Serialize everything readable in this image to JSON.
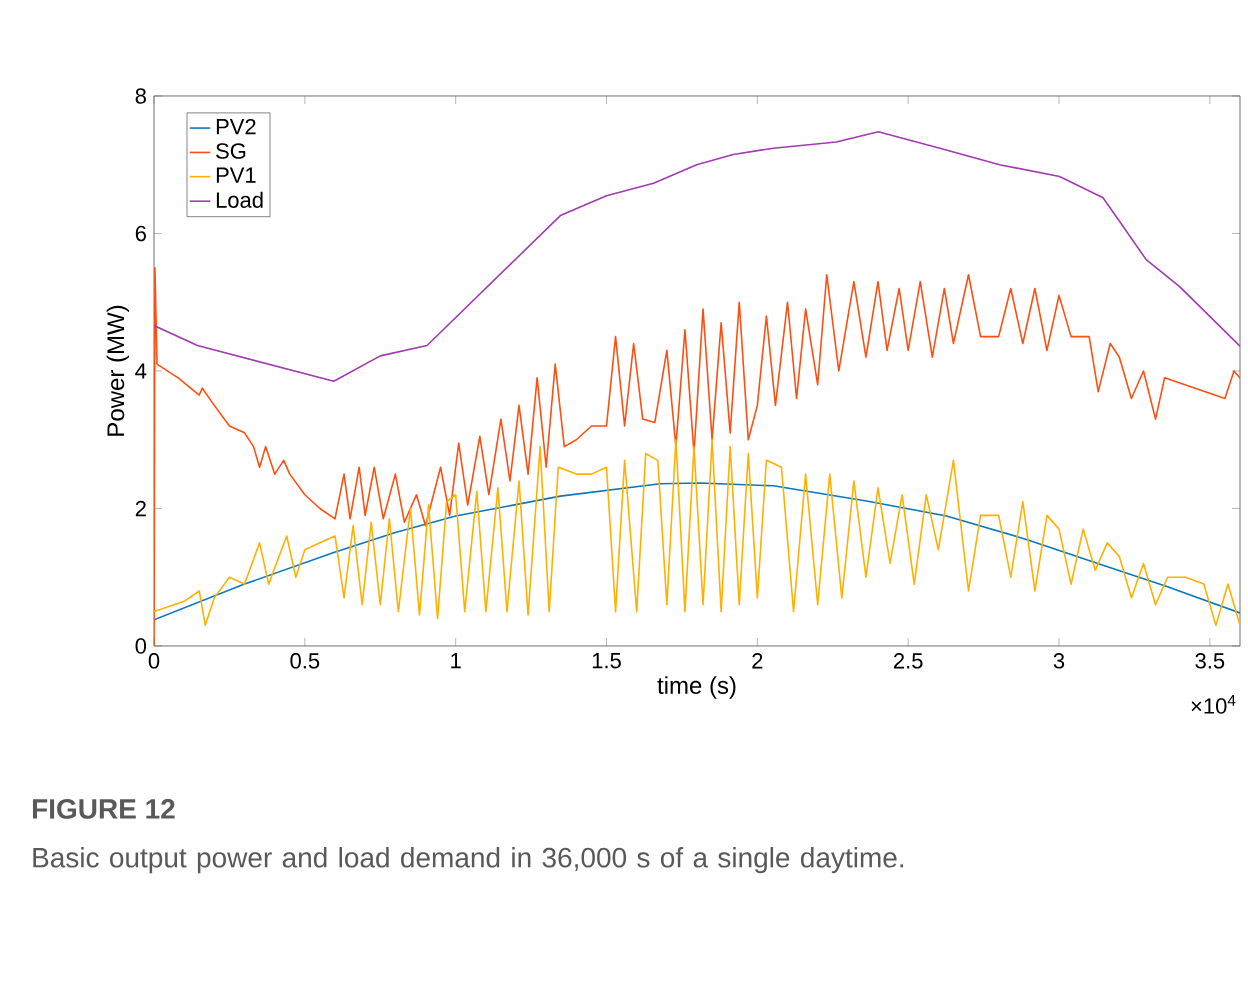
{
  "chart_data": {
    "type": "line",
    "xlabel": "time (s)",
    "ylabel": "Power (MW)",
    "xlim": [
      0,
      3.6
    ],
    "ylim": [
      0,
      8
    ],
    "xticks": [
      0,
      0.5,
      1,
      1.5,
      2,
      2.5,
      3,
      3.5
    ],
    "yticks": [
      0,
      2,
      4,
      6,
      8
    ],
    "legend": "top left",
    "grid": false,
    "annotations": [
      "×10$^{4}$",
      "FIGURE 12",
      "Basic output power and load demand in 36,000 s of a single daytime."
    ],
    "series": [
      {
        "name": "PV2",
        "color": "#0a78c0",
        "x": [
          0,
          0.3,
          0.596,
          0.8,
          1.0,
          1.347,
          1.678,
          1.81,
          2.053,
          2.362,
          2.627,
          2.892,
          3.156,
          3.355,
          3.6
        ],
        "values": [
          0.38,
          0.9,
          1.36,
          1.65,
          1.89,
          2.18,
          2.36,
          2.37,
          2.33,
          2.11,
          1.89,
          1.55,
          1.16,
          0.87,
          0.48
        ]
      },
      {
        "name": "SG",
        "color": "#fb5012",
        "x": [
          0,
          0.003,
          0.01,
          0.08,
          0.15,
          0.16,
          0.2,
          0.25,
          0.3,
          0.33,
          0.35,
          0.37,
          0.4,
          0.43,
          0.45,
          0.5,
          0.55,
          0.6,
          0.63,
          0.65,
          0.68,
          0.7,
          0.73,
          0.76,
          0.8,
          0.83,
          0.87,
          0.9,
          0.95,
          0.98,
          1.01,
          1.04,
          1.08,
          1.11,
          1.15,
          1.18,
          1.21,
          1.24,
          1.27,
          1.3,
          1.33,
          1.36,
          1.4,
          1.45,
          1.5,
          1.53,
          1.56,
          1.59,
          1.62,
          1.66,
          1.7,
          1.73,
          1.76,
          1.79,
          1.82,
          1.85,
          1.88,
          1.91,
          1.94,
          1.97,
          2.0,
          2.03,
          2.06,
          2.1,
          2.13,
          2.16,
          2.2,
          2.23,
          2.27,
          2.32,
          2.36,
          2.4,
          2.43,
          2.47,
          2.5,
          2.54,
          2.58,
          2.62,
          2.65,
          2.7,
          2.74,
          2.8,
          2.84,
          2.88,
          2.92,
          2.96,
          3.0,
          3.04,
          3.1,
          3.13,
          3.17,
          3.2,
          3.24,
          3.28,
          3.32,
          3.35,
          3.45,
          3.55,
          3.58,
          3.6
        ],
        "values": [
          0,
          5.5,
          4.1,
          3.9,
          3.65,
          3.75,
          3.5,
          3.2,
          3.1,
          2.9,
          2.6,
          2.9,
          2.5,
          2.7,
          2.5,
          2.2,
          2.0,
          1.85,
          2.5,
          1.85,
          2.6,
          1.9,
          2.6,
          1.85,
          2.5,
          1.8,
          2.2,
          1.75,
          2.6,
          1.9,
          2.95,
          2.05,
          3.05,
          2.2,
          3.3,
          2.4,
          3.5,
          2.5,
          3.9,
          2.6,
          4.1,
          2.9,
          3.0,
          3.2,
          3.2,
          4.5,
          3.2,
          4.4,
          3.3,
          3.25,
          4.3,
          2.9,
          4.6,
          2.8,
          4.9,
          3.0,
          4.7,
          3.1,
          5.0,
          3.0,
          3.5,
          4.8,
          3.5,
          5.0,
          3.6,
          4.9,
          3.8,
          5.4,
          4.0,
          5.3,
          4.2,
          5.3,
          4.3,
          5.2,
          4.3,
          5.3,
          4.2,
          5.2,
          4.4,
          5.4,
          4.5,
          4.5,
          5.2,
          4.4,
          5.2,
          4.3,
          5.1,
          4.5,
          4.5,
          3.7,
          4.4,
          4.2,
          3.6,
          4.0,
          3.3,
          3.9,
          3.75,
          3.6,
          4.0,
          3.9
        ]
      },
      {
        "name": "PV1",
        "color": "#ffb000",
        "x": [
          0,
          0.1,
          0.15,
          0.17,
          0.2,
          0.25,
          0.3,
          0.35,
          0.38,
          0.44,
          0.47,
          0.5,
          0.55,
          0.6,
          0.63,
          0.66,
          0.69,
          0.72,
          0.75,
          0.78,
          0.81,
          0.85,
          0.88,
          0.91,
          0.94,
          0.97,
          1.0,
          1.03,
          1.07,
          1.1,
          1.14,
          1.17,
          1.21,
          1.24,
          1.28,
          1.31,
          1.34,
          1.4,
          1.45,
          1.5,
          1.53,
          1.56,
          1.6,
          1.63,
          1.67,
          1.7,
          1.73,
          1.76,
          1.79,
          1.82,
          1.85,
          1.88,
          1.91,
          1.94,
          1.97,
          2.0,
          2.03,
          2.08,
          2.12,
          2.16,
          2.2,
          2.24,
          2.28,
          2.32,
          2.36,
          2.4,
          2.44,
          2.48,
          2.52,
          2.56,
          2.6,
          2.65,
          2.7,
          2.74,
          2.8,
          2.84,
          2.88,
          2.92,
          2.96,
          3.0,
          3.04,
          3.08,
          3.12,
          3.16,
          3.2,
          3.24,
          3.28,
          3.32,
          3.36,
          3.42,
          3.48,
          3.52,
          3.56,
          3.6
        ],
        "values": [
          0.5,
          0.65,
          0.8,
          0.3,
          0.7,
          1.0,
          0.9,
          1.5,
          0.9,
          1.6,
          1.0,
          1.4,
          1.5,
          1.6,
          0.7,
          1.75,
          0.6,
          1.8,
          0.6,
          1.85,
          0.5,
          2.0,
          0.45,
          2.05,
          0.4,
          2.1,
          2.2,
          0.5,
          2.25,
          0.5,
          2.3,
          0.5,
          2.4,
          0.45,
          2.9,
          0.5,
          2.6,
          2.5,
          2.5,
          2.6,
          0.5,
          2.7,
          0.5,
          2.8,
          2.7,
          0.6,
          3.0,
          0.5,
          2.9,
          0.6,
          3.0,
          0.5,
          2.9,
          0.6,
          2.8,
          0.7,
          2.7,
          2.6,
          0.5,
          2.5,
          0.6,
          2.5,
          0.7,
          2.4,
          1.0,
          2.3,
          1.2,
          2.2,
          0.9,
          2.2,
          1.4,
          2.7,
          0.8,
          1.9,
          1.9,
          1.0,
          2.1,
          0.8,
          1.9,
          1.7,
          0.9,
          1.7,
          1.1,
          1.5,
          1.3,
          0.7,
          1.2,
          0.6,
          1.0,
          1.0,
          0.9,
          0.3,
          0.9,
          0.3
        ]
      },
      {
        "name": "Load",
        "color": "#a03cb0",
        "x": [
          0,
          0.144,
          0.596,
          0.75,
          0.905,
          1.347,
          1.5,
          1.656,
          1.799,
          1.92,
          2.053,
          2.262,
          2.401,
          2.605,
          2.803,
          3.002,
          3.146,
          3.289,
          3.399,
          3.6
        ],
        "values": [
          4.66,
          4.37,
          3.85,
          4.22,
          4.37,
          6.26,
          6.55,
          6.73,
          7.0,
          7.15,
          7.24,
          7.33,
          7.48,
          7.24,
          7.0,
          6.83,
          6.52,
          5.62,
          5.23,
          4.36
        ]
      }
    ]
  }
}
